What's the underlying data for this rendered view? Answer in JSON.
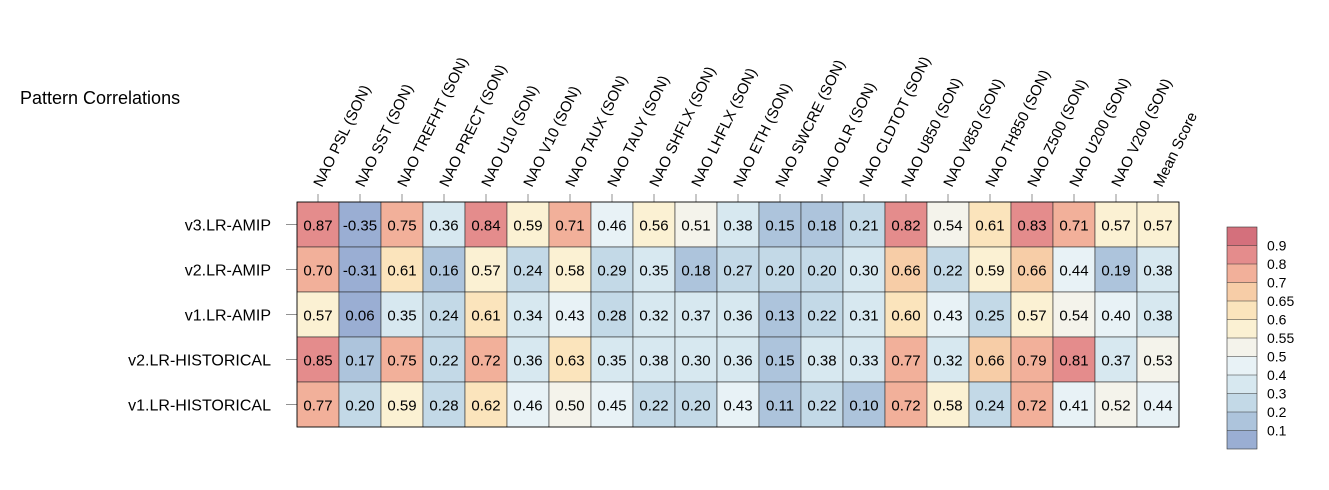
{
  "chart_data": {
    "type": "heatmap",
    "title": "Pattern Correlations",
    "columns": [
      "NAO PSL (SON)",
      "NAO SST (SON)",
      "NAO TREFHT (SON)",
      "NAO PRECT (SON)",
      "NAO U10 (SON)",
      "NAO V10 (SON)",
      "NAO TAUX (SON)",
      "NAO TAUY (SON)",
      "NAO SHFLX (SON)",
      "NAO LHFLX (SON)",
      "NAO ETH (SON)",
      "NAO SWCRE (SON)",
      "NAO OLR (SON)",
      "NAO CLDTOT (SON)",
      "NAO U850 (SON)",
      "NAO V850 (SON)",
      "NAO TH850 (SON)",
      "NAO Z500 (SON)",
      "NAO U200 (SON)",
      "NAO V200 (SON)",
      "Mean Score"
    ],
    "rows": [
      "v3.LR-AMIP",
      "v2.LR-AMIP",
      "v1.LR-AMIP",
      "v2.LR-HISTORICAL",
      "v1.LR-HISTORICAL"
    ],
    "values": [
      [
        0.87,
        -0.35,
        0.75,
        0.36,
        0.84,
        0.59,
        0.71,
        0.46,
        0.56,
        0.51,
        0.38,
        0.15,
        0.18,
        0.21,
        0.82,
        0.54,
        0.61,
        0.83,
        0.71,
        0.57,
        0.57
      ],
      [
        0.7,
        -0.31,
        0.61,
        0.16,
        0.57,
        0.24,
        0.58,
        0.29,
        0.35,
        0.18,
        0.27,
        0.2,
        0.2,
        0.3,
        0.66,
        0.22,
        0.59,
        0.66,
        0.44,
        0.19,
        0.38
      ],
      [
        0.57,
        0.06,
        0.35,
        0.24,
        0.61,
        0.34,
        0.43,
        0.28,
        0.32,
        0.37,
        0.36,
        0.13,
        0.22,
        0.31,
        0.6,
        0.43,
        0.25,
        0.57,
        0.54,
        0.4,
        0.38
      ],
      [
        0.85,
        0.17,
        0.75,
        0.22,
        0.72,
        0.36,
        0.63,
        0.35,
        0.38,
        0.3,
        0.36,
        0.15,
        0.38,
        0.33,
        0.77,
        0.32,
        0.66,
        0.79,
        0.81,
        0.37,
        0.53
      ],
      [
        0.77,
        0.2,
        0.59,
        0.28,
        0.62,
        0.46,
        0.5,
        0.45,
        0.22,
        0.2,
        0.43,
        0.11,
        0.22,
        0.1,
        0.72,
        0.58,
        0.24,
        0.72,
        0.41,
        0.52,
        0.44
      ]
    ],
    "colorbar": {
      "levels": [
        0.1,
        0.2,
        0.3,
        0.4,
        0.5,
        0.55,
        0.6,
        0.65,
        0.7,
        0.8,
        0.9
      ],
      "labels": [
        "0.1",
        "0.2",
        "0.3",
        "0.4",
        "0.5",
        "0.55",
        "0.6",
        "0.65",
        "0.7",
        "0.8",
        "0.9"
      ],
      "colors": [
        "#9aaed3",
        "#adc4dc",
        "#c3d9e7",
        "#d7e8f0",
        "#e8f2f6",
        "#f4f3eb",
        "#fbf1d3",
        "#fbe4bc",
        "#f7cda7",
        "#f2b09a",
        "#e48c8c",
        "#d4707c"
      ]
    }
  }
}
